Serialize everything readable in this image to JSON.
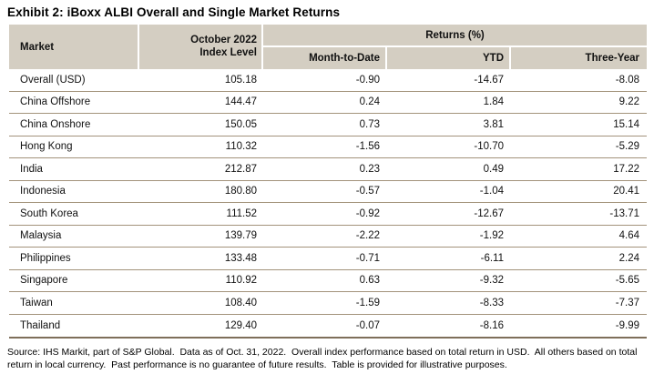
{
  "title": "Exhibit 2: iBoxx ALBI Overall and Single Market Returns",
  "colors": {
    "header_bg": "#d4cec2",
    "row_divider": "#a3937b",
    "table_bottom_border": "#7e6f5a"
  },
  "table": {
    "columns": {
      "market": "Market",
      "index_level_line1": "October 2022",
      "index_level_line2": "Index Level",
      "returns_group": "Returns (%)",
      "mtd": "Month-to-Date",
      "ytd": "YTD",
      "three_year": "Three-Year"
    },
    "rows": [
      {
        "market": "Overall (USD)",
        "index_level": "105.18",
        "mtd": "-0.90",
        "ytd": "-14.67",
        "three_year": "-8.08"
      },
      {
        "market": "China Offshore",
        "index_level": "144.47",
        "mtd": "0.24",
        "ytd": "1.84",
        "three_year": "9.22"
      },
      {
        "market": "China Onshore",
        "index_level": "150.05",
        "mtd": "0.73",
        "ytd": "3.81",
        "three_year": "15.14"
      },
      {
        "market": "Hong Kong",
        "index_level": "110.32",
        "mtd": "-1.56",
        "ytd": "-10.70",
        "three_year": "-5.29"
      },
      {
        "market": "India",
        "index_level": "212.87",
        "mtd": "0.23",
        "ytd": "0.49",
        "three_year": "17.22"
      },
      {
        "market": "Indonesia",
        "index_level": "180.80",
        "mtd": "-0.57",
        "ytd": "-1.04",
        "three_year": "20.41"
      },
      {
        "market": "South Korea",
        "index_level": "111.52",
        "mtd": "-0.92",
        "ytd": "-12.67",
        "three_year": "-13.71"
      },
      {
        "market": "Malaysia",
        "index_level": "139.79",
        "mtd": "-2.22",
        "ytd": "-1.92",
        "three_year": "4.64"
      },
      {
        "market": "Philippines",
        "index_level": "133.48",
        "mtd": "-0.71",
        "ytd": "-6.11",
        "three_year": "2.24"
      },
      {
        "market": "Singapore",
        "index_level": "110.92",
        "mtd": "0.63",
        "ytd": "-9.32",
        "three_year": "-5.65"
      },
      {
        "market": "Taiwan",
        "index_level": "108.40",
        "mtd": "-1.59",
        "ytd": "-8.33",
        "three_year": "-7.37"
      },
      {
        "market": "Thailand",
        "index_level": "129.40",
        "mtd": "-0.07",
        "ytd": "-8.16",
        "three_year": "-9.99"
      }
    ]
  },
  "footnote": "Source: IHS Markit, part of S&P Global.  Data as of Oct. 31, 2022.  Overall index performance based on total return in USD.  All others based on total return in local currency.  Past performance is no guarantee of future results.  Table is provided for illustrative purposes."
}
